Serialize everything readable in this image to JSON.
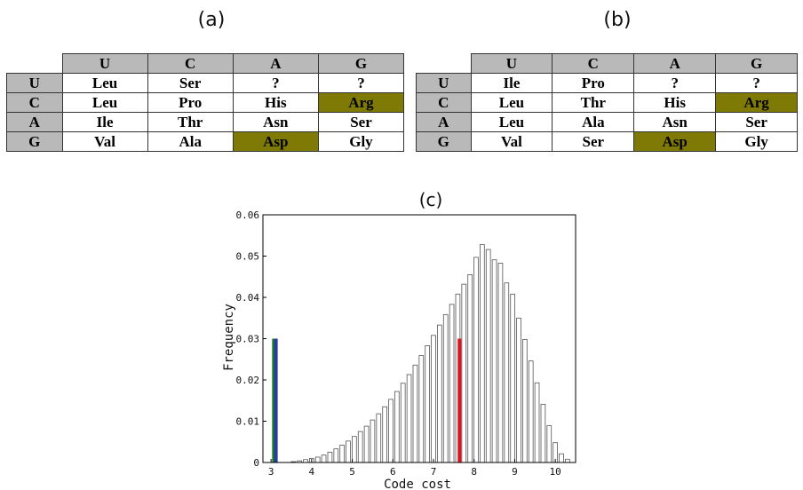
{
  "colors": {
    "header_bg": "#b9b9b9",
    "highlight": "#7f7a06",
    "red_bar": "#e0141c",
    "green_bar": "#1a7a1a",
    "blue_bar": "#2a3aa8"
  },
  "tables": [
    {
      "label": "(a)",
      "col_headers": [
        "U",
        "C",
        "A",
        "G"
      ],
      "row_headers": [
        "U",
        "C",
        "A",
        "G"
      ],
      "rows": [
        [
          "Leu",
          "Ser",
          "?",
          "?"
        ],
        [
          "Leu",
          "Pro",
          "His",
          "Arg"
        ],
        [
          "Ile",
          "Thr",
          "Asn",
          "Ser"
        ],
        [
          "Val",
          "Ala",
          "Asp",
          "Gly"
        ]
      ],
      "highlighted": [
        "1-3",
        "3-2"
      ]
    },
    {
      "label": "(b)",
      "col_headers": [
        "U",
        "C",
        "A",
        "G"
      ],
      "row_headers": [
        "U",
        "C",
        "A",
        "G"
      ],
      "rows": [
        [
          "Ile",
          "Pro",
          "?",
          "?"
        ],
        [
          "Leu",
          "Thr",
          "His",
          "Arg"
        ],
        [
          "Leu",
          "Ala",
          "Asn",
          "Ser"
        ],
        [
          "Val",
          "Ser",
          "Asp",
          "Gly"
        ]
      ],
      "highlighted": [
        "1-3",
        "3-2"
      ]
    }
  ],
  "chart_data": {
    "type": "bar",
    "title": "(c)",
    "xlabel": "Code cost",
    "ylabel": "Frequency",
    "xlim": [
      2.8,
      10.5
    ],
    "ylim": [
      0,
      0.06
    ],
    "xticks": [
      3,
      4,
      5,
      6,
      7,
      8,
      9,
      10
    ],
    "yticks": [
      0,
      0.01,
      0.02,
      0.03,
      0.04,
      0.05,
      0.06
    ],
    "bin_width": 0.15,
    "x": [
      3.55,
      3.7,
      3.85,
      4.0,
      4.15,
      4.3,
      4.45,
      4.6,
      4.75,
      4.9,
      5.05,
      5.2,
      5.35,
      5.5,
      5.65,
      5.8,
      5.95,
      6.1,
      6.25,
      6.4,
      6.55,
      6.7,
      6.85,
      7.0,
      7.15,
      7.3,
      7.45,
      7.6,
      7.75,
      7.9,
      8.05,
      8.2,
      8.35,
      8.5,
      8.65,
      8.8,
      8.95,
      9.1,
      9.25,
      9.4,
      9.55,
      9.7,
      9.85,
      10.0,
      10.15,
      10.3
    ],
    "values": [
      0.0002,
      0.0004,
      0.0007,
      0.001,
      0.0013,
      0.0018,
      0.0025,
      0.0033,
      0.0042,
      0.0052,
      0.0063,
      0.0075,
      0.0088,
      0.0103,
      0.0118,
      0.0135,
      0.0153,
      0.0172,
      0.0192,
      0.0213,
      0.0236,
      0.0259,
      0.0283,
      0.0308,
      0.0333,
      0.0358,
      0.0383,
      0.0408,
      0.0432,
      0.0455,
      0.0497,
      0.0528,
      0.0516,
      0.0491,
      0.0483,
      0.0435,
      0.0408,
      0.035,
      0.0298,
      0.0246,
      0.0193,
      0.0141,
      0.0089,
      0.0048,
      0.0021,
      0.0008
    ],
    "markers": [
      {
        "x": 3.07,
        "value": 0.03,
        "color": "#1a7a1a"
      },
      {
        "x": 3.12,
        "value": 0.03,
        "color": "#2a3aa8"
      },
      {
        "x": 7.64,
        "value": 0.03,
        "color": "#e0141c"
      }
    ]
  }
}
